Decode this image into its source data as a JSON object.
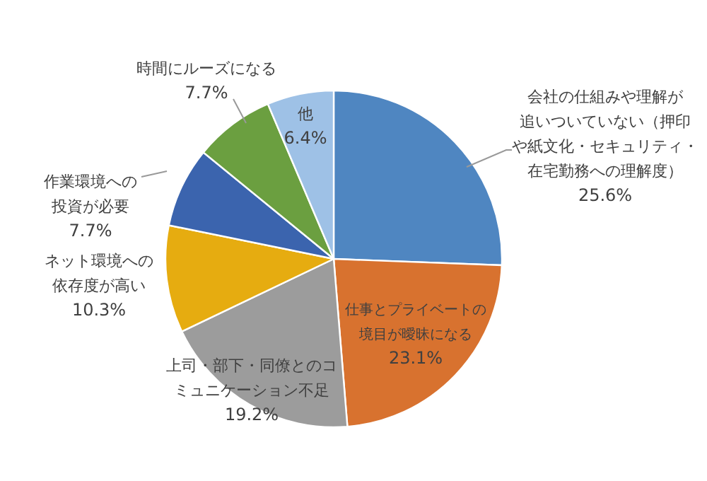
{
  "chart_data": {
    "type": "pie",
    "categories": [
      "会社の仕組みや理解が追いついていない（押印や紙文化・セキュリティ・在宅勤務への理解度）",
      "仕事とプライベートの境目が曖昧になる",
      "上司・部下・同僚とのコミュニケーション不足",
      "ネット環境への依存度が高い",
      "作業環境への投資が必要",
      "時間にルーズになる",
      "他"
    ],
    "values": [
      25.6,
      23.1,
      19.2,
      10.3,
      7.7,
      7.7,
      6.4
    ],
    "value_labels": [
      "25.6%",
      "23.1%",
      "19.2%",
      "10.3%",
      "7.7%",
      "7.7%",
      "6.4%"
    ],
    "colors": [
      "#4f86c1",
      "#d8722f",
      "#9c9c9c",
      "#e6ac10",
      "#3b64ae",
      "#6b9f40",
      "#9ec1e6"
    ]
  }
}
